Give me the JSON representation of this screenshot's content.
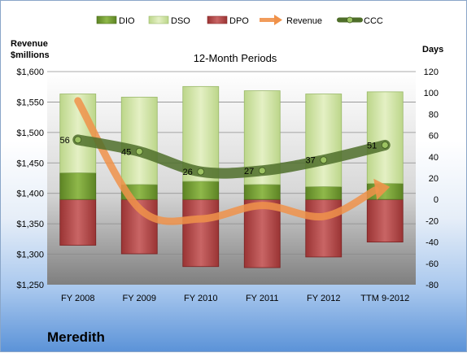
{
  "chart_data": {
    "type": "bar",
    "title": "12-Month Periods",
    "company": "Meredith",
    "categories": [
      "FY 2008",
      "FY 2009",
      "FY 2010",
      "FY 2011",
      "FY 2012",
      "TTM 9-2012"
    ],
    "left_axis": {
      "label_line1": "Revenue",
      "label_line2": "$millions",
      "ylim": [
        1250,
        1600
      ],
      "ticks": [
        1250,
        1300,
        1350,
        1400,
        1450,
        1500,
        1550,
        1600
      ],
      "tick_labels": [
        "$1,250",
        "$1,300",
        "$1,350",
        "$1,400",
        "$1,450",
        "$1,500",
        "$1,550",
        "$1,600"
      ]
    },
    "right_axis": {
      "label": "Days",
      "ylim": [
        -80,
        120
      ],
      "ticks": [
        -80,
        -60,
        -40,
        -20,
        0,
        20,
        40,
        60,
        80,
        100,
        120
      ],
      "tick_labels": [
        "-80",
        "-60",
        "-40",
        "-20",
        "0",
        "20",
        "40",
        "60",
        "80",
        "100",
        "120"
      ]
    },
    "series": [
      {
        "name": "DIO",
        "type": "stacked-bar",
        "axis": "right",
        "color": "#6f9a2e",
        "values": [
          25,
          14,
          17,
          14,
          12,
          15
        ]
      },
      {
        "name": "DSO",
        "type": "stacked-bar",
        "axis": "right",
        "color": "#d2e5a4",
        "values": [
          74,
          82,
          89,
          88,
          87,
          86
        ]
      },
      {
        "name": "DPO",
        "type": "stacked-bar",
        "axis": "right",
        "color": "#b84a4a",
        "values": [
          -43,
          -51,
          -63,
          -64,
          -54,
          -40
        ]
      },
      {
        "name": "Revenue",
        "type": "line-arrow",
        "axis": "left",
        "color": "#f0924a",
        "values": [
          1552,
          1375,
          1358,
          1380,
          1362,
          1408
        ]
      },
      {
        "name": "CCC",
        "type": "line",
        "axis": "right",
        "color": "#4f6e2a",
        "values": [
          56,
          45,
          26,
          27,
          37,
          51
        ]
      }
    ],
    "ccc_labels": [
      "56",
      "45",
      "26",
      "27",
      "37",
      "51"
    ],
    "legend_position": "top"
  }
}
